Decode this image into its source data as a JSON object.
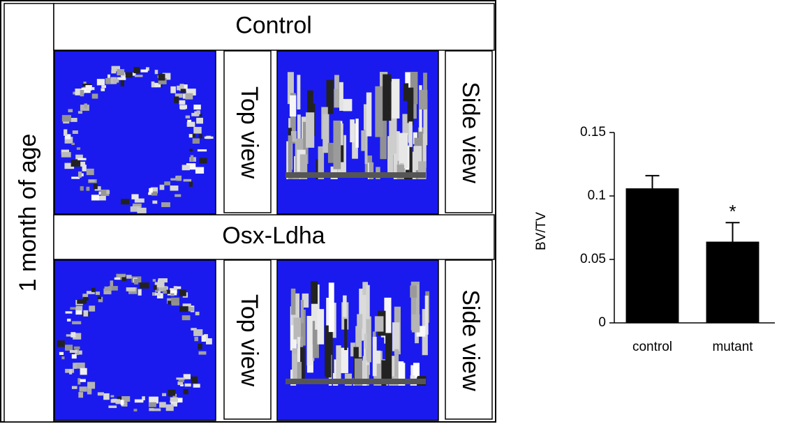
{
  "panel": {
    "row_label": "1 month of age",
    "groups": [
      {
        "title": "Control",
        "views": [
          "Top view",
          "Side view"
        ]
      },
      {
        "title": "Osx-Ldha",
        "views": [
          "Top view",
          "Side view"
        ]
      }
    ]
  },
  "chart_data": {
    "type": "bar",
    "ylabel": "BV/TV",
    "categories": [
      "control",
      "mutant"
    ],
    "values": [
      0.106,
      0.064
    ],
    "errors": [
      0.01,
      0.015
    ],
    "annotations": [
      null,
      "*"
    ],
    "color": "#000000",
    "ylim": [
      0,
      0.15
    ],
    "yticks": [
      0,
      0.05,
      0.1,
      0.15
    ]
  }
}
